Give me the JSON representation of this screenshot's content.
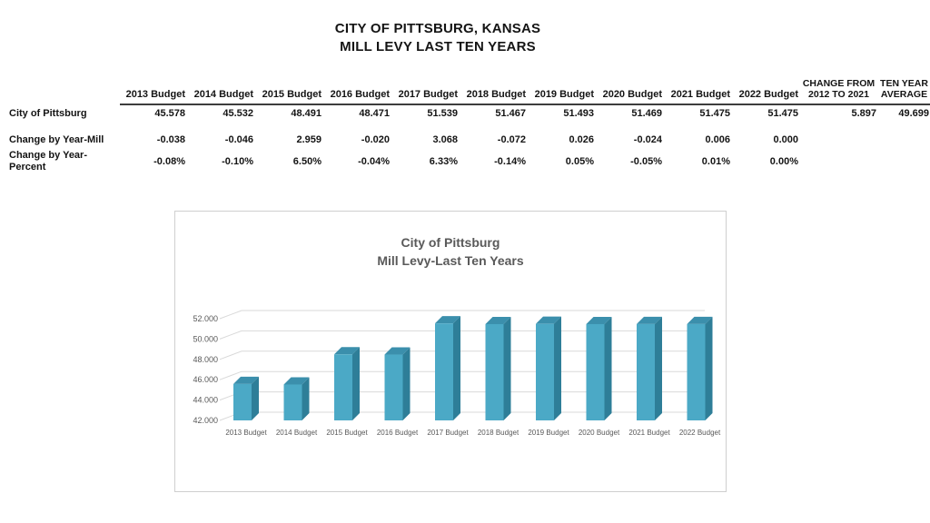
{
  "page": {
    "title_line1": "CITY OF PITTSBURG, KANSAS",
    "title_line2": "MILL LEVY LAST TEN YEARS"
  },
  "table": {
    "columns": [
      "2013 Budget",
      "2014 Budget",
      "2015 Budget",
      "2016 Budget",
      "2017 Budget",
      "2018 Budget",
      "2019 Budget",
      "2020 Budget",
      "2021 Budget",
      "2022 Budget",
      "CHANGE FROM\n2012 TO 2021",
      "TEN YEAR\nAVERAGE"
    ],
    "rows": [
      {
        "label": "City of Pittsburg",
        "values": [
          "45.578",
          "45.532",
          "48.491",
          "48.471",
          "51.539",
          "51.467",
          "51.493",
          "51.469",
          "51.475",
          "51.475",
          "5.897",
          "49.699"
        ]
      },
      {
        "label": "Change by Year-Mill",
        "values": [
          "-0.038",
          "-0.046",
          "2.959",
          "-0.020",
          "3.068",
          "-0.072",
          "0.026",
          "-0.024",
          "0.006",
          "0.000",
          "",
          ""
        ]
      },
      {
        "label": "Change by Year-Percent",
        "values": [
          "-0.08%",
          "-0.10%",
          "6.50%",
          "-0.04%",
          "6.33%",
          "-0.14%",
          "0.05%",
          "-0.05%",
          "0.01%",
          "0.00%",
          "",
          ""
        ]
      }
    ]
  },
  "chart_data": {
    "type": "bar",
    "style": "3d",
    "title_line1": "City of Pittsburg",
    "title_line2": "Mill Levy-Last Ten Years",
    "categories": [
      "2013 Budget",
      "2014 Budget",
      "2015 Budget",
      "2016 Budget",
      "2017 Budget",
      "2018 Budget",
      "2019 Budget",
      "2020 Budget",
      "2021 Budget",
      "2022 Budget"
    ],
    "values": [
      45.578,
      45.532,
      48.491,
      48.471,
      51.539,
      51.467,
      51.493,
      51.469,
      51.475,
      51.475
    ],
    "ylim": [
      42,
      52
    ],
    "yticks": [
      42,
      44,
      46,
      48,
      50,
      52
    ],
    "ytick_labels": [
      "42.000",
      "44.000",
      "46.000",
      "48.000",
      "50.000",
      "52.000"
    ],
    "grid": "on",
    "legend": "none",
    "bar_color_front": "#4BA9C6",
    "bar_color_top": "#3B8FAC",
    "bar_color_side": "#2E7E98",
    "grid_color": "#d9d9d9",
    "text_color": "#595959"
  }
}
